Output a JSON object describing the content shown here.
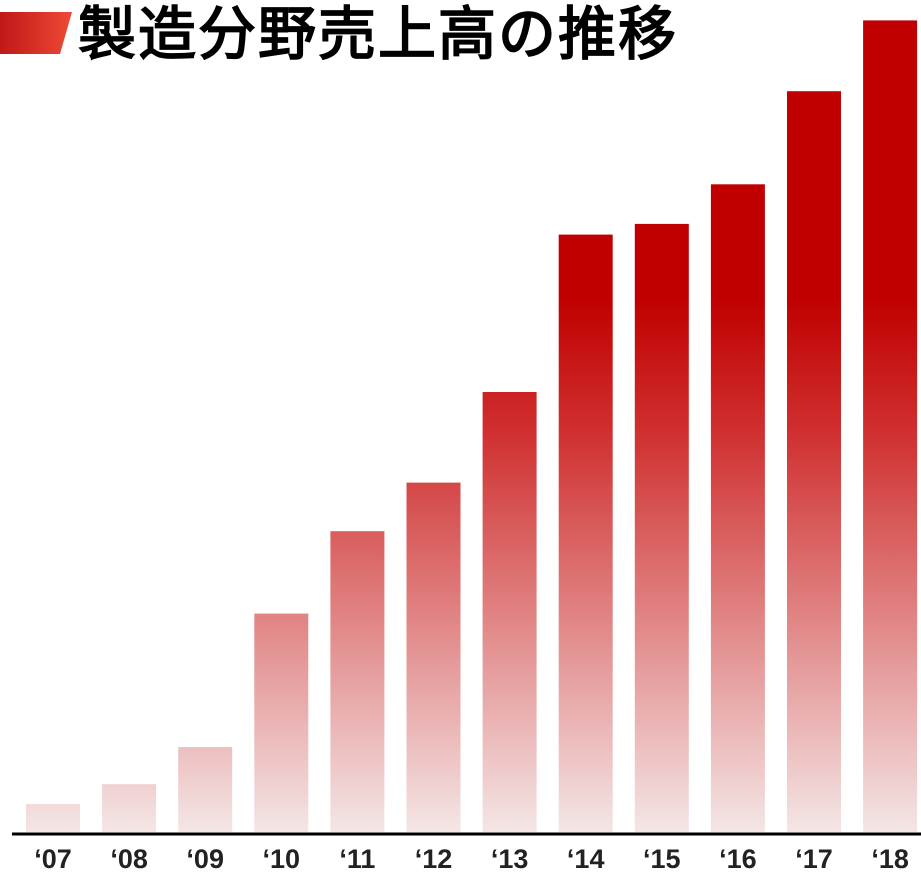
{
  "chart_data": {
    "type": "bar",
    "title": "製造分野売上高の推移",
    "categories": [
      "‘07",
      "‘08",
      "‘09",
      "‘10",
      "‘11",
      "‘12",
      "‘13",
      "‘14",
      "‘15",
      "‘16",
      "‘17",
      "‘18"
    ],
    "values": [
      3.4,
      5.8,
      10.3,
      26.5,
      36.5,
      42.4,
      53.4,
      72.5,
      73.8,
      78.6,
      89.9,
      98.5
    ],
    "xlabel": "",
    "ylabel": "",
    "ylim": [
      0,
      100
    ],
    "grid": false,
    "legend": "none"
  },
  "colors": {
    "bar_top": "#c00000",
    "bar_bottom": "#f4e6e6",
    "accent": "#e53a2a",
    "axis": "#000000",
    "text": "#222222"
  }
}
